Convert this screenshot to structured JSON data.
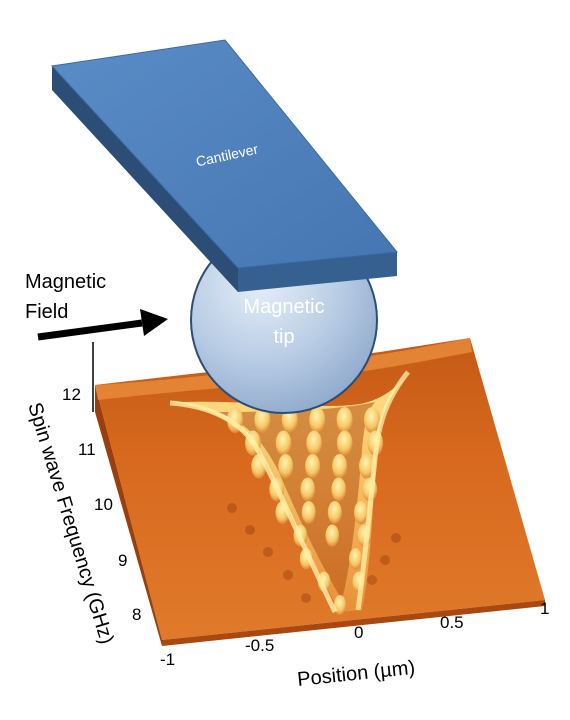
{
  "labels": {
    "cantilever": "Cantilever",
    "magnetic_tip_line1": "Magnetic",
    "magnetic_tip_line2": "tip",
    "magnetic_field_line1": "Magnetic",
    "magnetic_field_line2": "Field"
  },
  "axes": {
    "xlabel": "Position (µm)",
    "ylabel": "Spin wave Frequency (GHz)",
    "x_ticks": [
      "-1",
      "-0.5",
      "0",
      "0.5",
      "1"
    ],
    "y_ticks": [
      "12",
      "11",
      "10",
      "9",
      "8"
    ]
  },
  "colors": {
    "cantilever_top": "#4f81bd",
    "cantilever_side": "#2c4d75",
    "tip": "#b9cde5",
    "surface_base": "#d8651a",
    "surface_highlight": "#ffe890",
    "arrow": "#000000"
  }
}
